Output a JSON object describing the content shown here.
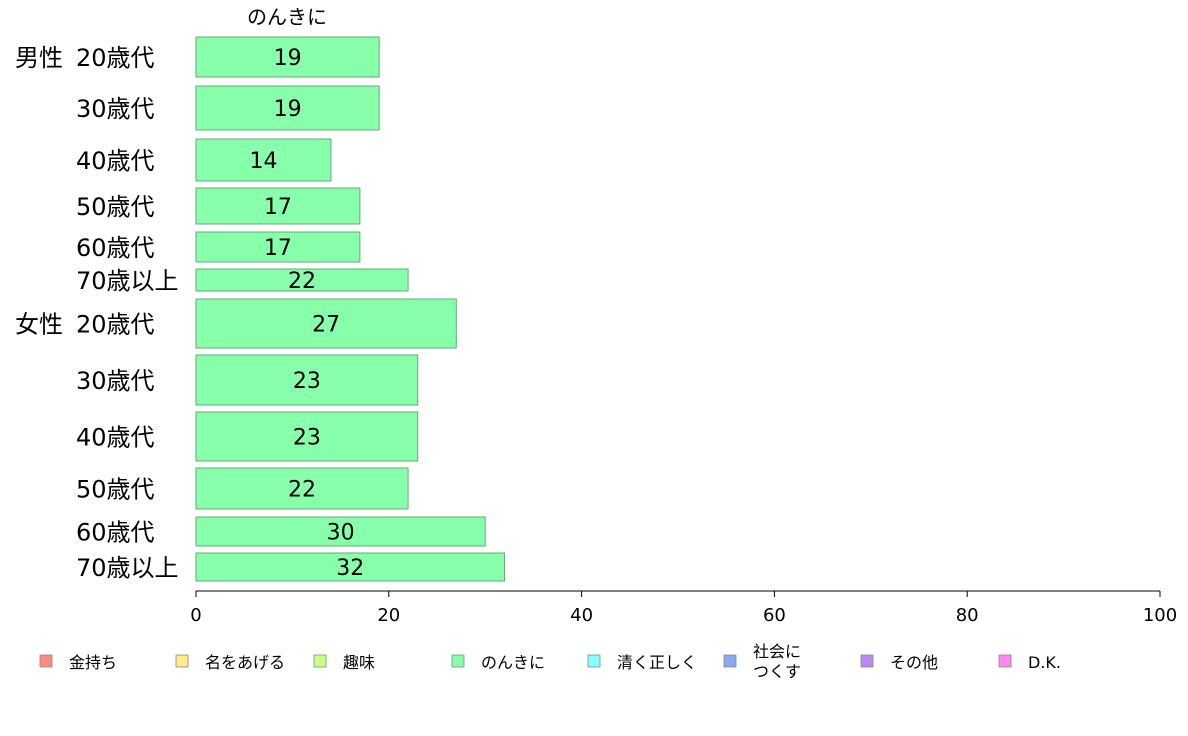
{
  "chart_data": {
    "type": "bar",
    "orientation": "horizontal",
    "series_title": "のんきに",
    "groups": [
      "男性",
      "女性"
    ],
    "categories": [
      {
        "group": "男性",
        "label": "20歳代"
      },
      {
        "group": "",
        "label": "30歳代"
      },
      {
        "group": "",
        "label": "40歳代"
      },
      {
        "group": "",
        "label": "50歳代"
      },
      {
        "group": "",
        "label": "60歳代"
      },
      {
        "group": "",
        "label": "70歳以上"
      },
      {
        "group": "女性",
        "label": "20歳代"
      },
      {
        "group": "",
        "label": "30歳代"
      },
      {
        "group": "",
        "label": "40歳代"
      },
      {
        "group": "",
        "label": "50歳代"
      },
      {
        "group": "",
        "label": "60歳代"
      },
      {
        "group": "",
        "label": "70歳以上"
      }
    ],
    "values": [
      19,
      19,
      14,
      17,
      17,
      22,
      27,
      23,
      23,
      22,
      30,
      32
    ],
    "value_labels": [
      "19",
      "19",
      "14",
      "17",
      "17",
      "22",
      "27",
      "23",
      "23",
      "22",
      "30",
      "32"
    ],
    "series_color": "#88ffaa",
    "xlim": [
      0,
      100
    ],
    "xticks": [
      0,
      20,
      40,
      60,
      80,
      100
    ],
    "grid": false,
    "legend": {
      "position": "bottom",
      "items": [
        {
          "label": "金持ち",
          "color": "#ff8888"
        },
        {
          "label": "名をあげる",
          "color": "#ffee88"
        },
        {
          "label": "趣味",
          "color": "#ccff88"
        },
        {
          "label": "のんきに",
          "color": "#88ffaa"
        },
        {
          "label": "清く正しく",
          "color": "#88ffff"
        },
        {
          "label": "社会に\nつくす",
          "color": "#88aaee"
        },
        {
          "label": "その他",
          "color": "#bb88ee"
        },
        {
          "label": "D.K.",
          "color": "#ff88ee"
        }
      ]
    }
  }
}
